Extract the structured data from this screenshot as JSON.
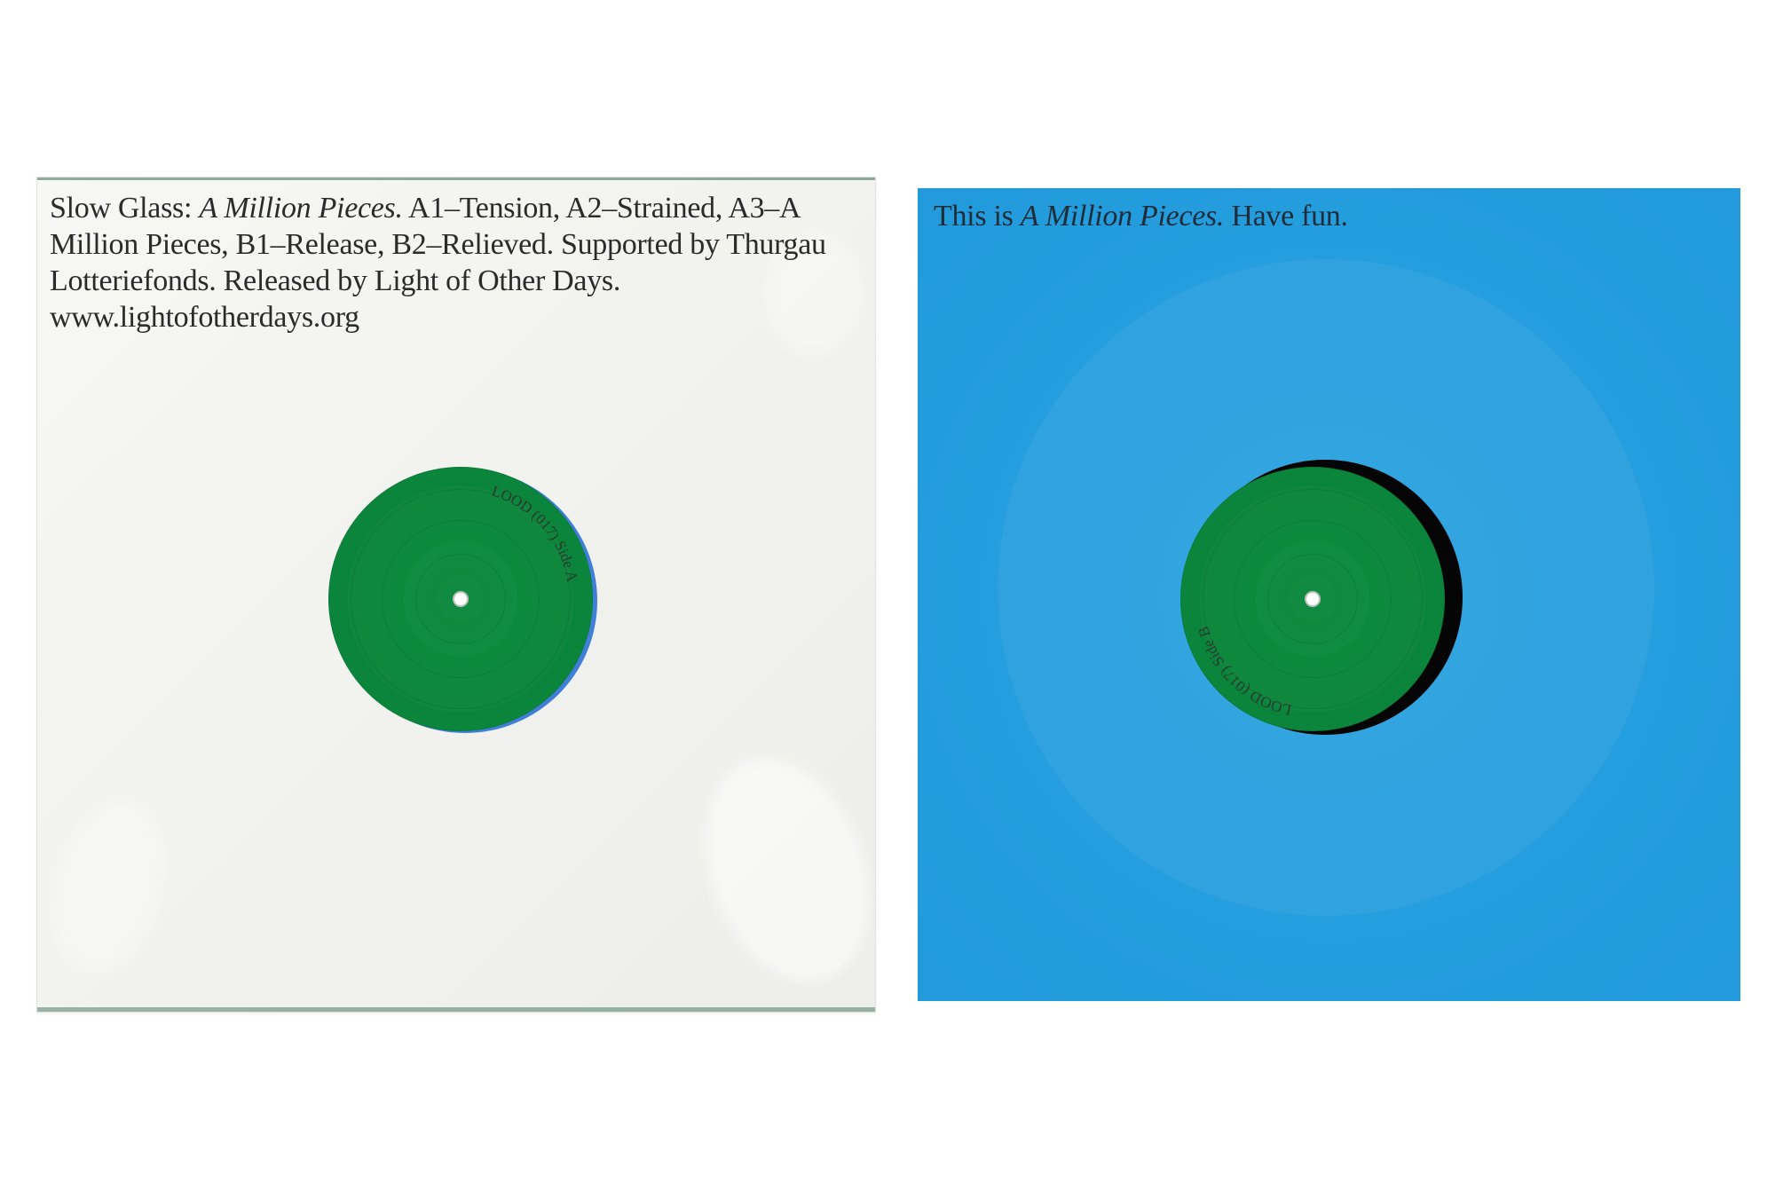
{
  "left_sleeve": {
    "text_prefix": "Slow Glass: ",
    "text_italic": "A Million Pieces.",
    "text_rest": " A1–Tension, A2–Strained, A3–A Million Pieces, B1–Release, B2–Relieved. Sup­ported by Thurgau Lotteriefonds. Released by Light of Other Days. www.lightofotherdays.org",
    "label_text": "LOOD (017) Side A",
    "background_color": "#f3f3f0",
    "label_color": "#0e8a3e",
    "visible_disc_edge_color": "#3f7fd8"
  },
  "right_sleeve": {
    "text_prefix": "This is ",
    "text_italic": "A Million Pieces.",
    "text_rest": " Have fun.",
    "label_text": "LOOD (017) Side B",
    "background_color": "#239dde",
    "label_color": "#0e8a3e",
    "visible_disc_edge_color": "#000000"
  }
}
